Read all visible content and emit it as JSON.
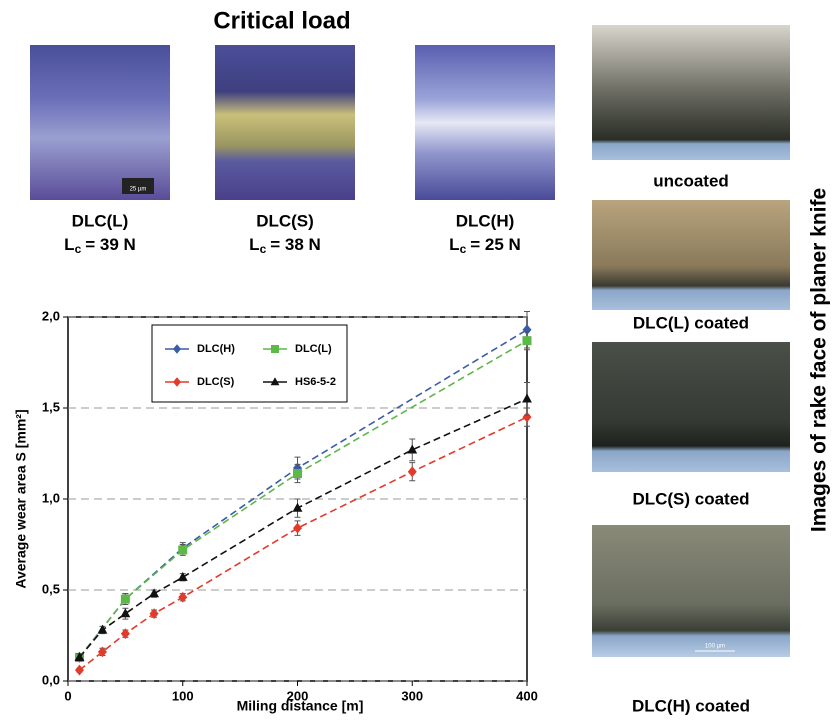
{
  "header": {
    "title": "Critical load"
  },
  "samples": [
    {
      "name": "DLC(L)",
      "symbol": "L",
      "subscript": "c",
      "load": "= 39 N",
      "scale_bar": "25 µm"
    },
    {
      "name": "DLC(S)",
      "symbol": "L",
      "subscript": "c",
      "load": "= 38 N"
    },
    {
      "name": "DLC(H)",
      "symbol": "L",
      "subscript": "c",
      "load": "= 25 N"
    }
  ],
  "side_panel": {
    "title": "Images of rake face of planer knife",
    "images": [
      {
        "caption": "uncoated"
      },
      {
        "caption": "DLC(L) coated"
      },
      {
        "caption": "DLC(S) coated"
      },
      {
        "caption": "DLC(H) coated",
        "scale_bar": "100 µm"
      }
    ]
  },
  "chart_data": {
    "type": "line",
    "x_label": "Miling distance [m]",
    "y_label": "Average wear area S [mm²]",
    "xlim": [
      0,
      400
    ],
    "xticks": [
      0,
      100,
      200,
      300,
      400
    ],
    "ylim": [
      0,
      2
    ],
    "yticks": [
      {
        "value": 0,
        "label": "0,0"
      },
      {
        "value": 0.5,
        "label": "0,5"
      },
      {
        "value": 1,
        "label": "1,0"
      },
      {
        "value": 1.5,
        "label": "1,5"
      },
      {
        "value": 2,
        "label": "2,0"
      }
    ],
    "grid": true,
    "series": [
      {
        "name": "DLC(H)",
        "color": "#3b5ca6",
        "marker": "diamond",
        "x": [
          10,
          50,
          100,
          200,
          400
        ],
        "values": [
          0.13,
          0.45,
          0.73,
          1.17,
          1.93
        ],
        "errors": [
          0.02,
          0.03,
          0.03,
          0.06,
          0.1
        ]
      },
      {
        "name": "DLC(L)",
        "color": "#5cb848",
        "marker": "square",
        "x": [
          10,
          50,
          100,
          200,
          400
        ],
        "values": [
          0.13,
          0.45,
          0.72,
          1.14,
          1.87
        ],
        "errors": [
          0.02,
          0.03,
          0.03,
          0.05,
          0.05
        ]
      },
      {
        "name": "DLC(S)",
        "color": "#e23b2c",
        "marker": "diamond",
        "x": [
          10,
          30,
          50,
          75,
          100,
          200,
          300,
          400
        ],
        "values": [
          0.06,
          0.16,
          0.26,
          0.37,
          0.46,
          0.84,
          1.15,
          1.45
        ],
        "errors": [
          0.01,
          0.02,
          0.02,
          0.02,
          0.02,
          0.04,
          0.05,
          0.05
        ]
      },
      {
        "name": "HS6-5-2",
        "color": "#111111",
        "marker": "triangle",
        "x": [
          10,
          30,
          50,
          75,
          100,
          200,
          300,
          400
        ],
        "values": [
          0.13,
          0.28,
          0.37,
          0.48,
          0.57,
          0.95,
          1.27,
          1.55
        ],
        "errors": [
          0.02,
          0.02,
          0.03,
          0.02,
          0.02,
          0.05,
          0.06,
          0.09
        ]
      }
    ]
  }
}
